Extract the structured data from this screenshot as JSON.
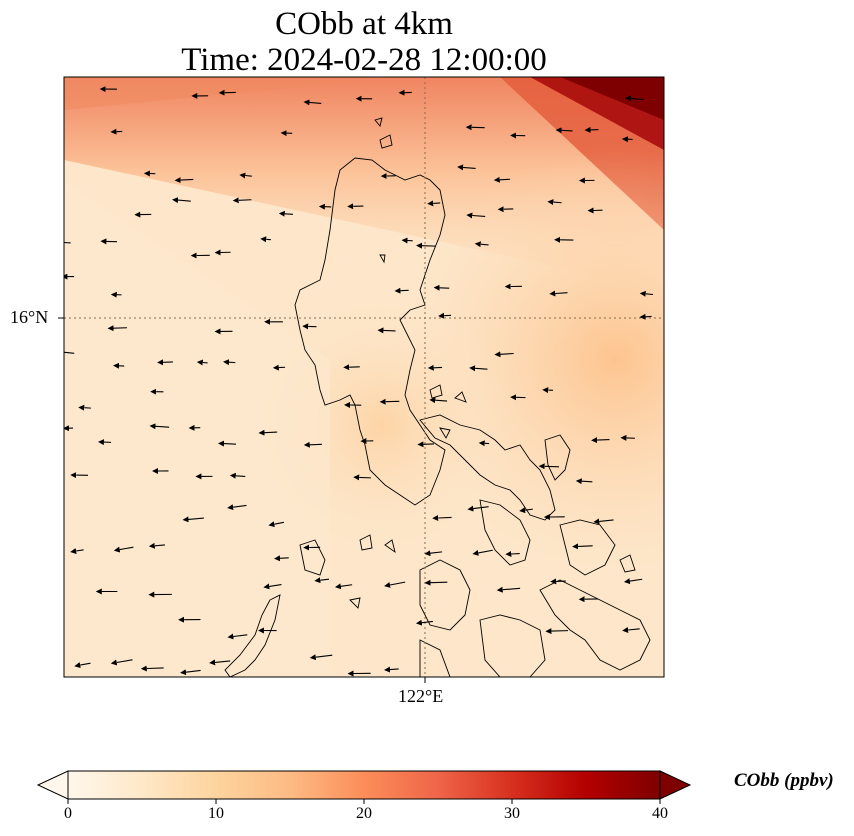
{
  "title_line1": "CObb at 4km",
  "title_line2": "Time: 2024-02-28 12:00:00",
  "gridlines": {
    "lat": "16°N",
    "lon": "122°E"
  },
  "colorbar": {
    "label": "CObb (ppbv)",
    "min": 0,
    "max": 40,
    "ticks": [
      "0",
      "10",
      "20",
      "30",
      "40"
    ],
    "colormap": "OrRd",
    "extend": "both"
  },
  "colors": {
    "low": "#fff7ec",
    "mid_low": "#fdd49e",
    "mid": "#fc8d59",
    "high": "#d7301f",
    "max": "#7f0000"
  },
  "map": {
    "field": "CObb",
    "units": "ppbv",
    "region": "Luzon, Philippines",
    "wind_vectors": true,
    "coastlines": true
  }
}
